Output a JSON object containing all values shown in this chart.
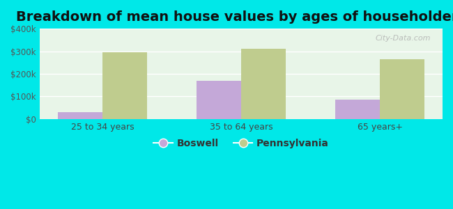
{
  "title": "Breakdown of mean house values by ages of householders",
  "categories": [
    "25 to 34 years",
    "35 to 64 years",
    "65 years+"
  ],
  "boswell_values": [
    30000,
    170000,
    85000
  ],
  "pennsylvania_values": [
    295000,
    310000,
    265000
  ],
  "boswell_color": "#c4a8d8",
  "pennsylvania_color": "#bfcc8e",
  "ylim": [
    0,
    400000
  ],
  "yticks": [
    0,
    100000,
    200000,
    300000,
    400000
  ],
  "ytick_labels": [
    "$0",
    "$100k",
    "$200k",
    "$300k",
    "$400k"
  ],
  "background_outer": "#00e8e8",
  "title_fontsize": 14,
  "legend_labels": [
    "Boswell",
    "Pennsylvania"
  ],
  "bar_width": 0.32,
  "grid_color": "#ddeecc"
}
